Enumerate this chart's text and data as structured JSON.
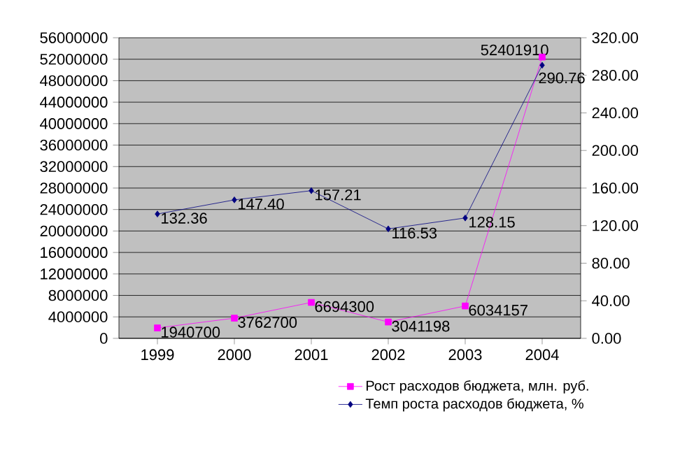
{
  "chart_data": {
    "type": "line",
    "categories": [
      "1999",
      "2000",
      "2001",
      "2002",
      "2003",
      "2004"
    ],
    "series": [
      {
        "name": "Рост расходов бюджета, млн. руб.",
        "color": "#ff00ff",
        "marker": "square",
        "values": [
          1940700,
          3762700,
          6694300,
          3041198,
          6034157,
          52401910
        ],
        "value_labels": [
          "1940700",
          "3762700",
          "6694300",
          "3041198",
          "6034157",
          "52401910"
        ]
      },
      {
        "name": "Темп роста расходов бюджета, %",
        "color": "#000080",
        "marker": "diamond",
        "axis": "y2",
        "values": [
          132.36,
          147.4,
          157.21,
          116.53,
          128.15,
          290.76
        ],
        "value_labels": [
          "132.36",
          "147.40",
          "157.21",
          "116.53",
          "128.15",
          "290.76"
        ]
      }
    ],
    "ylim": [
      0,
      56000000
    ],
    "yticks": [
      0,
      4000000,
      8000000,
      12000000,
      16000000,
      20000000,
      24000000,
      28000000,
      32000000,
      36000000,
      40000000,
      44000000,
      48000000,
      52000000,
      56000000
    ],
    "y2lim": [
      0,
      320
    ],
    "y2ticks": [
      {
        "value": 0,
        "label": "0.00"
      },
      {
        "value": 40,
        "label": "40.00"
      },
      {
        "value": 80,
        "label": "80.00"
      },
      {
        "value": 120,
        "label": "120.00"
      },
      {
        "value": 160,
        "label": "160.00"
      },
      {
        "value": 200,
        "label": "200.00"
      },
      {
        "value": 240,
        "label": "240.00"
      },
      {
        "value": 280,
        "label": "280.00"
      },
      {
        "value": 320,
        "label": "320.00"
      }
    ],
    "grid": "y",
    "legend": "bottom"
  }
}
